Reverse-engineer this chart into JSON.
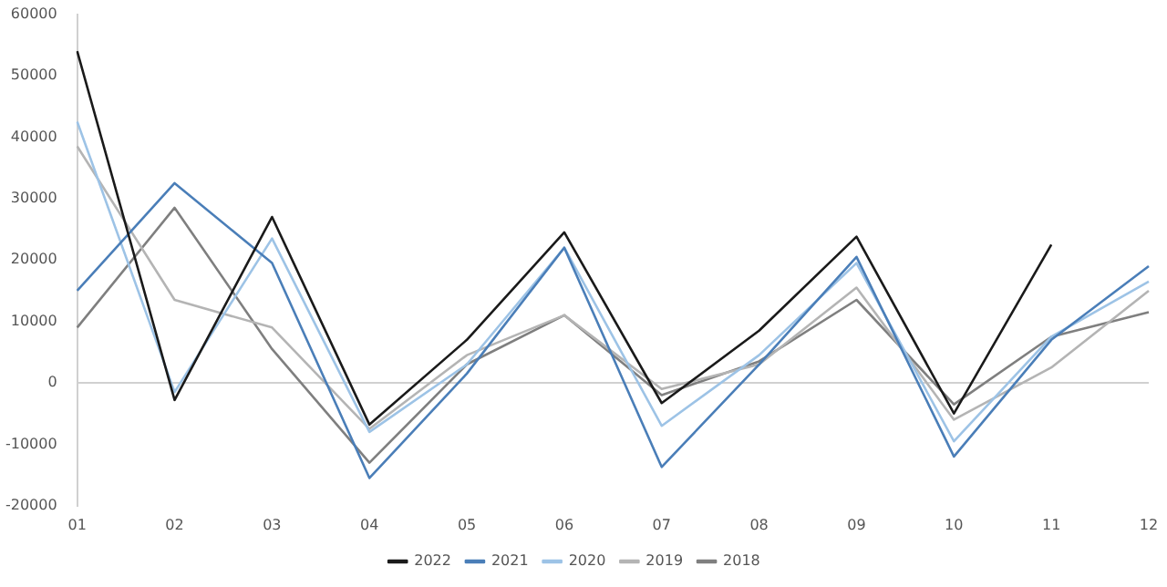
{
  "chart_data": {
    "type": "line",
    "categories": [
      "01",
      "02",
      "03",
      "04",
      "05",
      "06",
      "07",
      "08",
      "09",
      "10",
      "11",
      "12"
    ],
    "series": [
      {
        "name": "2022",
        "color": "#1a1a1a",
        "values": [
          54000,
          -2800,
          27000,
          -6800,
          7000,
          24500,
          -3300,
          8500,
          23800,
          -5000,
          22500,
          null
        ]
      },
      {
        "name": "2021",
        "color": "#4a7eb8",
        "values": [
          15000,
          32500,
          19500,
          -15500,
          1500,
          22000,
          -13700,
          3000,
          20500,
          -12000,
          7000,
          19000
        ]
      },
      {
        "name": "2020",
        "color": "#9dc3e6",
        "values": [
          42500,
          -1500,
          23500,
          -8000,
          3000,
          22000,
          -7000,
          4500,
          19500,
          -9500,
          7500,
          16500
        ]
      },
      {
        "name": "2019",
        "color": "#b4b4b4",
        "values": [
          38500,
          13500,
          9000,
          -7500,
          4500,
          11000,
          -1000,
          3000,
          15500,
          -6000,
          2500,
          15000
        ]
      },
      {
        "name": "2018",
        "color": "#7f7f7f",
        "values": [
          9000,
          28500,
          5500,
          -13000,
          3000,
          11000,
          -2000,
          3500,
          13500,
          -3500,
          7500,
          11500
        ]
      }
    ],
    "ylim": [
      -20000,
      60000
    ],
    "yticks": [
      -20000,
      -10000,
      0,
      10000,
      20000,
      30000,
      40000,
      50000,
      60000
    ],
    "ref_lines": [
      {
        "axis": "y",
        "value": 0,
        "color": "#d0d0d0"
      }
    ],
    "grid": false,
    "legend": "bottom",
    "marker": "none",
    "line_style": "solid"
  }
}
